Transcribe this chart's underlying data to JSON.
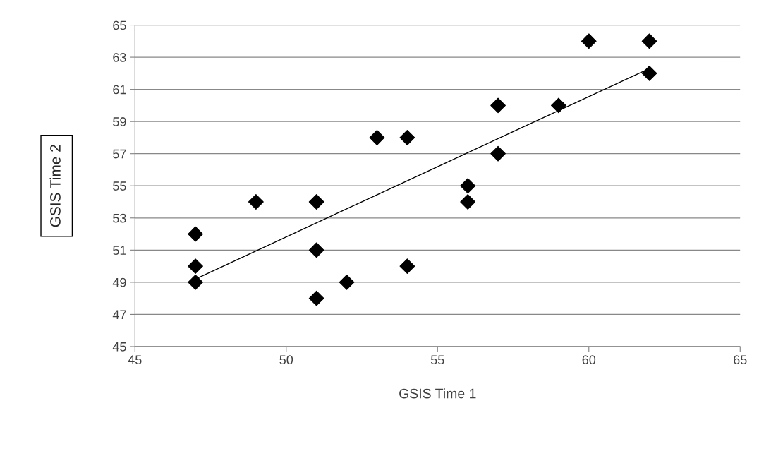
{
  "chart_data": {
    "type": "scatter",
    "xlabel": "GSIS Time 1",
    "ylabel": "GSIS Time 2",
    "xlim": [
      45,
      65
    ],
    "xticks": [
      45,
      50,
      55,
      60,
      65
    ],
    "ylim": [
      45,
      65
    ],
    "yticks": [
      45,
      47,
      49,
      51,
      53,
      55,
      57,
      59,
      61,
      63,
      65
    ],
    "grid": "y",
    "legend": false,
    "marker": "diamond",
    "series": [
      {
        "color": "#000000",
        "x": [
          47,
          47,
          47,
          49,
          51,
          51,
          51,
          52,
          53,
          54,
          54,
          56,
          56,
          57,
          57,
          59,
          60,
          62,
          62
        ],
        "values": [
          52,
          50,
          49,
          54,
          54,
          51,
          48,
          49,
          58,
          58,
          50,
          55,
          54,
          60,
          57,
          60,
          64,
          64,
          62
        ]
      },
      {
        "type": "line",
        "color": "#000000",
        "marker": "none",
        "line_style": "solid",
        "x": [
          47,
          62
        ],
        "values": [
          49.2,
          62.3
        ]
      }
    ]
  }
}
